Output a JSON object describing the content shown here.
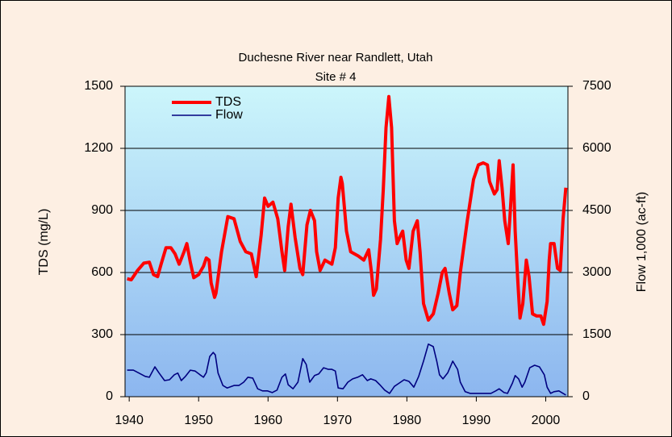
{
  "chart_data": {
    "type": "line",
    "title": "Duchesne River near Randlett, Utah",
    "subtitle": "Site # 4",
    "ylabel": "TDS (mg/L)",
    "y2label": "Flow 1,000 (ac-ft)",
    "xlim": [
      1939.4,
      2003.2
    ],
    "xticks": [
      1940,
      1950,
      1960,
      1970,
      1980,
      1990,
      2000
    ],
    "ylim": [
      0,
      1500
    ],
    "yticks": [
      0,
      300,
      600,
      900,
      1200,
      1500
    ],
    "y2lim": [
      0,
      7500
    ],
    "y2ticks": [
      0,
      1500,
      3000,
      4500,
      6000,
      7500
    ],
    "grid": true,
    "legend": "upper left",
    "series": [
      {
        "name": "TDS",
        "color": "#ff0000",
        "axis": "y",
        "x": [
          1939.7,
          1940.3,
          1941.2,
          1942.1,
          1942.9,
          1943.5,
          1944.1,
          1944.6,
          1945.3,
          1946.0,
          1946.6,
          1947.2,
          1947.9,
          1948.3,
          1948.8,
          1949.3,
          1950.0,
          1950.7,
          1951.1,
          1951.5,
          1951.8,
          1952.3,
          1952.5,
          1953.3,
          1954.2,
          1955.1,
          1956.0,
          1956.8,
          1957.6,
          1958.3,
          1959.0,
          1959.5,
          1960.0,
          1960.7,
          1961.4,
          1962.0,
          1962.4,
          1962.9,
          1963.3,
          1963.9,
          1964.6,
          1965.0,
          1965.6,
          1966.1,
          1966.7,
          1967.0,
          1967.5,
          1968.2,
          1969.2,
          1969.7,
          1970.1,
          1970.5,
          1970.7,
          1971.3,
          1971.9,
          1973.0,
          1973.8,
          1974.5,
          1974.9,
          1975.2,
          1975.6,
          1976.2,
          1976.6,
          1977.0,
          1977.4,
          1977.8,
          1978.2,
          1978.6,
          1979.1,
          1979.4,
          1979.9,
          1980.3,
          1980.9,
          1981.5,
          1981.9,
          1982.4,
          1983.1,
          1983.8,
          1984.5,
          1985.1,
          1985.5,
          1986.1,
          1986.6,
          1987.2,
          1987.7,
          1988.7,
          1989.6,
          1990.3,
          1991.0,
          1991.6,
          1991.9,
          1992.6,
          1993.0,
          1993.3,
          1993.7,
          1994.1,
          1994.6,
          1994.9,
          1995.3,
          1995.6,
          1996.0,
          1996.3,
          1996.7,
          1997.2,
          1997.6,
          1998.1,
          1998.7,
          1999.3,
          1999.7,
          2000.2,
          2000.5,
          2000.7,
          2001.2,
          2001.7,
          2002.1,
          2002.5,
          2002.9
        ],
        "values": [
          570,
          565,
          610,
          645,
          650,
          590,
          580,
          640,
          720,
          720,
          690,
          640,
          700,
          740,
          650,
          575,
          590,
          630,
          670,
          660,
          550,
          480,
          500,
          700,
          870,
          860,
          750,
          700,
          690,
          580,
          780,
          960,
          920,
          940,
          860,
          700,
          610,
          820,
          930,
          770,
          620,
          590,
          830,
          900,
          850,
          700,
          610,
          660,
          640,
          720,
          960,
          1060,
          1030,
          800,
          700,
          680,
          660,
          710,
          600,
          490,
          520,
          760,
          1000,
          1300,
          1450,
          1300,
          850,
          740,
          780,
          800,
          660,
          620,
          800,
          850,
          700,
          450,
          370,
          400,
          500,
          600,
          620,
          500,
          420,
          440,
          600,
          850,
          1050,
          1120,
          1130,
          1120,
          1040,
          980,
          1000,
          1140,
          1010,
          850,
          740,
          900,
          1120,
          800,
          550,
          380,
          450,
          660,
          580,
          400,
          390,
          390,
          350,
          460,
          660,
          740,
          740,
          620,
          610,
          860,
          1010
        ]
      },
      {
        "name": "Flow",
        "color": "#000080",
        "axis": "y2",
        "x": [
          1939.7,
          1940.6,
          1941.4,
          1942.3,
          1942.9,
          1943.7,
          1944.3,
          1945.1,
          1945.8,
          1946.5,
          1947.0,
          1947.5,
          1948.1,
          1948.8,
          1949.5,
          1950.2,
          1950.7,
          1951.1,
          1951.6,
          1952.1,
          1952.4,
          1952.8,
          1953.5,
          1954.1,
          1955.1,
          1955.8,
          1956.5,
          1957.1,
          1957.8,
          1958.5,
          1959.2,
          1959.9,
          1960.6,
          1961.3,
          1962.0,
          1962.5,
          1962.9,
          1963.6,
          1964.3,
          1965.0,
          1965.5,
          1966.0,
          1966.7,
          1967.3,
          1968.0,
          1968.7,
          1969.2,
          1969.7,
          1970.1,
          1970.8,
          1971.5,
          1972.2,
          1972.9,
          1973.6,
          1974.3,
          1974.8,
          1975.5,
          1976.2,
          1976.8,
          1977.5,
          1978.2,
          1978.9,
          1979.6,
          1980.3,
          1981.0,
          1981.7,
          1982.4,
          1983.1,
          1983.8,
          1984.3,
          1984.7,
          1985.2,
          1985.9,
          1986.6,
          1987.3,
          1987.7,
          1988.4,
          1989.1,
          1989.8,
          1991.0,
          1992.1,
          1992.8,
          1993.3,
          1994.0,
          1994.5,
          1995.2,
          1995.6,
          1996.1,
          1996.6,
          1997.0,
          1997.7,
          1998.4,
          1999.1,
          1999.8,
          2000.2,
          2000.7,
          2001.2,
          2001.9,
          2002.5,
          2002.9
        ],
        "values": [
          640,
          640,
          570,
          490,
          470,
          720,
          570,
          390,
          410,
          530,
          570,
          390,
          490,
          640,
          620,
          530,
          470,
          580,
          970,
          1070,
          1010,
          570,
          270,
          210,
          270,
          270,
          350,
          470,
          450,
          190,
          140,
          140,
          100,
          160,
          470,
          550,
          290,
          190,
          350,
          920,
          780,
          350,
          510,
          550,
          700,
          660,
          660,
          620,
          210,
          190,
          350,
          430,
          470,
          530,
          390,
          430,
          390,
          270,
          160,
          80,
          250,
          330,
          410,
          370,
          230,
          490,
          860,
          1270,
          1210,
          860,
          530,
          430,
          580,
          860,
          660,
          350,
          120,
          80,
          80,
          80,
          80,
          140,
          190,
          100,
          80,
          330,
          510,
          430,
          230,
          350,
          700,
          760,
          720,
          530,
          230,
          80,
          120,
          140,
          80,
          40
        ]
      }
    ]
  }
}
